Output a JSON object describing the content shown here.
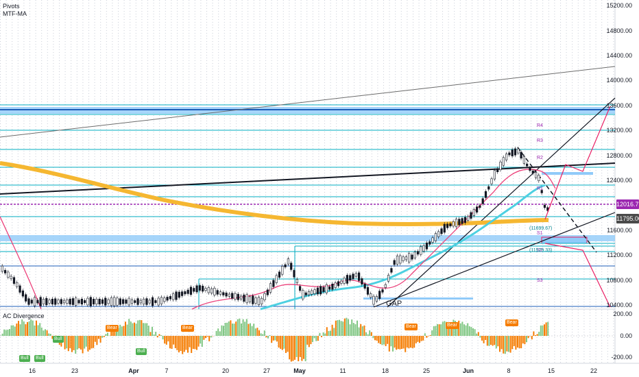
{
  "indicators": {
    "pivots": "Pivots",
    "mtf_ma": "MTF-MA",
    "ac_divergence": "AC Divergence"
  },
  "price_axis": [
    "15200.00",
    "14800.00",
    "14400.00",
    "14000.00",
    "13600.00",
    "13200.00",
    "12800.00",
    "12400.00",
    "11600.00",
    "11200.00",
    "10800.00",
    "10400.00"
  ],
  "price_badges": {
    "last": "12016.75",
    "ma": "11795.00"
  },
  "osc_axis": [
    "200.00",
    "0.00",
    "-200.00"
  ],
  "dates": [
    "16",
    "23",
    "Apr",
    "7",
    "20",
    "27",
    "May",
    "11",
    "18",
    "25",
    "Jun",
    "8",
    "15",
    "22"
  ],
  "pivot_labels": [
    "R4",
    "R3",
    "R2",
    "R1",
    "S1",
    "S2",
    "S3"
  ],
  "pivot_values": [
    "(11699.67)",
    "(11529.33)"
  ],
  "annotation_gap": "GAP",
  "signals": {
    "bear": "Bear",
    "bull": "Bull"
  },
  "colors": {
    "ma_orange": "#f5b731",
    "cyan": "#00bcd4",
    "pink": "#e91e63",
    "purple": "#9c27b0",
    "zone_blue": "#90caf9"
  }
}
